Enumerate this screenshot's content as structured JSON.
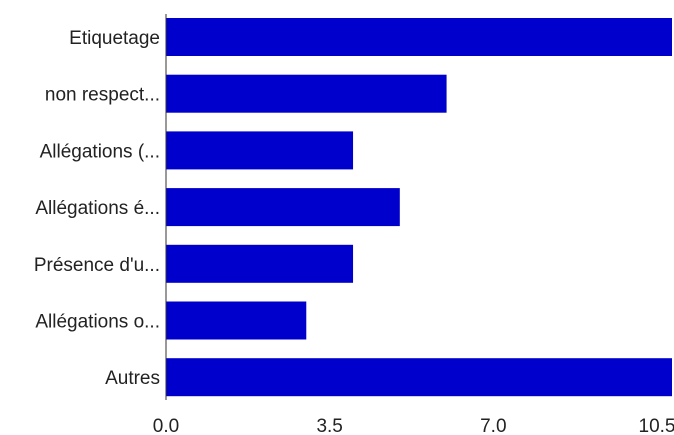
{
  "chart_data": {
    "type": "bar",
    "orientation": "horizontal",
    "categories": [
      "Etiquetage",
      "non respect...",
      "Allégations (...",
      "Allégations é...",
      "Présence d'u...",
      "Allégations o...",
      "Autres"
    ],
    "values": [
      11,
      6,
      4,
      5,
      4,
      3,
      11
    ],
    "xlim": [
      0,
      10.5
    ],
    "x_ticks": [
      0,
      3.5,
      7,
      10.5
    ],
    "x_tick_labels": [
      "0.0",
      "3.5",
      "7.0",
      "10.5"
    ],
    "title": "",
    "xlabel": "",
    "ylabel": "",
    "grid": false,
    "bar_color": "#0000CC",
    "axis_color": "#333333"
  }
}
